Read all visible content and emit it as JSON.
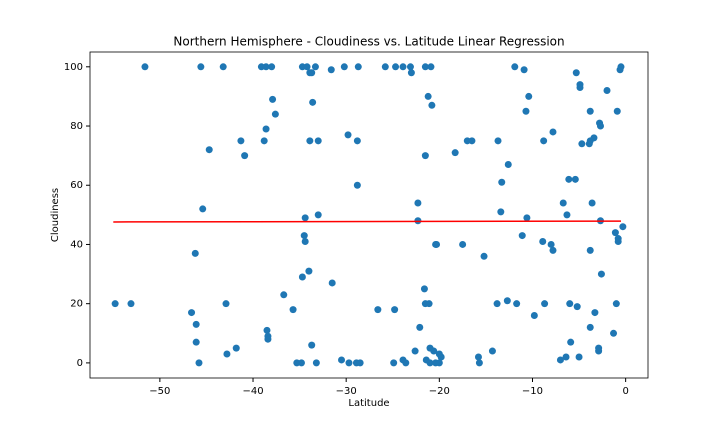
{
  "chart_data": {
    "type": "scatter",
    "title": "Northern Hemisphere - Cloudiness vs. Latitude Linear Regression",
    "x_label": "Latitude",
    "y_label": "Cloudiness",
    "color": "#1f77b4",
    "x": [
      -54.8,
      -53.1,
      -51.6,
      -45.6,
      -43.2,
      -46.2,
      -46.6,
      -46.1,
      -46.1,
      -45.8,
      -45.4,
      -44.7,
      -42.9,
      -42.8,
      -41.8,
      -41.3,
      -40.9,
      -39.1,
      -38.6,
      -38.0,
      -38.8,
      -38.6,
      -37.9,
      -37.6,
      -38.5,
      -38.4,
      -38.4,
      -36.7,
      -35.7,
      -35.3,
      -34.8,
      -34.7,
      -34.2,
      -33.9,
      -33.7,
      -33.3,
      -34.5,
      -34.4,
      -34.4,
      -34.7,
      -34.0,
      -33.6,
      -33.9,
      -33.0,
      -33.0,
      -33.7,
      -33.2,
      -31.6,
      -30.2,
      -31.5,
      -30.5,
      -29.8,
      -29.7,
      -28.9,
      -28.5,
      -28.7,
      -28.8,
      -28.8,
      -26.6,
      -25.8,
      -24.7,
      -23.9,
      -24.8,
      -24.9,
      -23.9,
      -23.6,
      -23.1,
      -23.0,
      -22.6,
      -22.3,
      -22.3,
      -22.1,
      -21.5,
      -20.9,
      -21.2,
      -20.8,
      -21.5,
      -21.6,
      -21.5,
      -21.1,
      -21.4,
      -21.0,
      -21.0,
      -20.6,
      -20.4,
      -20.3,
      -20.4,
      -20.0,
      -19.8,
      -20.0,
      -18.3,
      -17.5,
      -17.0,
      -16.5,
      -15.8,
      -15.7,
      -15.2,
      -14.3,
      -13.8,
      -13.7,
      -13.3,
      -13.4,
      -12.6,
      -12.7,
      -11.9,
      -11.7,
      -10.9,
      -11.1,
      -10.7,
      -10.4,
      -10.6,
      -9.8,
      -8.8,
      -8.9,
      -8.7,
      -8.0,
      -7.8,
      -7.8,
      -7.0,
      -6.4,
      -6.7,
      -6.3,
      -6.1,
      -6.0,
      -5.9,
      -5.4,
      -5.3,
      -4.9,
      -4.9,
      -5.2,
      -5.0,
      -4.7,
      -3.9,
      -3.8,
      -3.8,
      -3.6,
      -3.8,
      -3.4,
      -3.8,
      -3.3,
      -2.9,
      -2.9,
      -2.8,
      -2.7,
      -2.7,
      -2.6,
      -2.0,
      -1.3,
      -1.1,
      -1.0,
      -0.9,
      -0.8,
      -0.8,
      -0.6,
      -0.5,
      -0.3
    ],
    "values": [
      20,
      20,
      100,
      100,
      100,
      37,
      17,
      13,
      7,
      0,
      52,
      72,
      20,
      3,
      5,
      75,
      70,
      100,
      100,
      100,
      75,
      79,
      89,
      84,
      11,
      9,
      8,
      23,
      18,
      0,
      0,
      100,
      100,
      98,
      98,
      100,
      43,
      41,
      49,
      29,
      31,
      88,
      75,
      75,
      50,
      6,
      0,
      99,
      100,
      27,
      1,
      77,
      0,
      0,
      0,
      100,
      75,
      60,
      18,
      100,
      100,
      100,
      18,
      0,
      1,
      0,
      100,
      98,
      4,
      54,
      48,
      12,
      100,
      100,
      90,
      87,
      70,
      25,
      20,
      20,
      1,
      0,
      5,
      4,
      40,
      40,
      0,
      3,
      2,
      0,
      71,
      40,
      75,
      75,
      2,
      0,
      36,
      4,
      20,
      75,
      61,
      51,
      67,
      21,
      100,
      20,
      99,
      43,
      85,
      90,
      49,
      16,
      75,
      41,
      20,
      40,
      78,
      38,
      1,
      2,
      54,
      50,
      62,
      20,
      7,
      62,
      98,
      94,
      93,
      19,
      2,
      74,
      74,
      75,
      85,
      54,
      38,
      76,
      12,
      17,
      5,
      4,
      81,
      80,
      48,
      30,
      92,
      10,
      44,
      20,
      85,
      42,
      41,
      99,
      100,
      46
    ],
    "regression": {
      "x": [
        -55,
        -0.5
      ],
      "values": [
        47.6,
        47.9
      ],
      "color": "#ff0000"
    },
    "xlim": [
      -57.5,
      2.4
    ],
    "ylim": [
      -5.1,
      105
    ],
    "xticks": [
      {
        "value": -50,
        "label": "−50"
      },
      {
        "value": -40,
        "label": "−40"
      },
      {
        "value": -30,
        "label": "−30"
      },
      {
        "value": -20,
        "label": "−20"
      },
      {
        "value": -10,
        "label": "−10"
      },
      0
    ],
    "yticks": [
      0,
      20,
      40,
      60,
      80,
      100
    ]
  }
}
